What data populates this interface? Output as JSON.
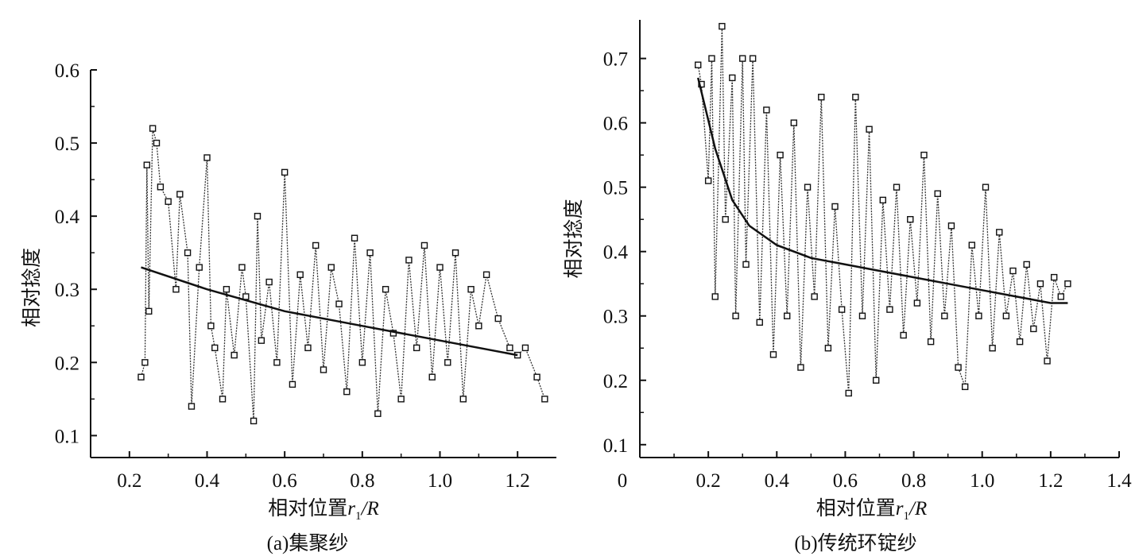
{
  "chart_data": [
    {
      "type": "line",
      "caption": "(a)集聚纱",
      "xlabel_prefix": "相对位置",
      "xlabel_var": "r",
      "xlabel_sub": "1",
      "xlabel_suffix": "/R",
      "ylabel": "相对捻度",
      "xlim": [
        0.1,
        1.3
      ],
      "ylim": [
        0.07,
        0.6
      ],
      "x_ticks": [
        0.2,
        0.4,
        0.6,
        0.8,
        1.0,
        1.2
      ],
      "x_tick_labels": [
        "0.2",
        "0.4",
        "0.6",
        "0.8",
        "1.0",
        "1.2"
      ],
      "y_ticks": [
        0.1,
        0.2,
        0.3,
        0.4,
        0.5,
        0.6
      ],
      "y_tick_labels": [
        "0.1",
        "0.2",
        "0.3",
        "0.4",
        "0.5",
        "0.6"
      ],
      "y_minor_ticks": [
        0.15,
        0.25,
        0.35,
        0.45,
        0.55
      ],
      "x_axis_labels_offset": 0,
      "series": [
        {
          "role": "measured-trace",
          "x": [
            0.23,
            0.24,
            0.245,
            0.25,
            0.26,
            0.27,
            0.28,
            0.3,
            0.32,
            0.33,
            0.35,
            0.36,
            0.38,
            0.4,
            0.41,
            0.42,
            0.44,
            0.45,
            0.47,
            0.49,
            0.5,
            0.52,
            0.53,
            0.54,
            0.56,
            0.58,
            0.6,
            0.62,
            0.64,
            0.66,
            0.68,
            0.7,
            0.72,
            0.74,
            0.76,
            0.78,
            0.8,
            0.82,
            0.84,
            0.86,
            0.88,
            0.9,
            0.92,
            0.94,
            0.96,
            0.98,
            1.0,
            1.02,
            1.04,
            1.06,
            1.08,
            1.1,
            1.12,
            1.15,
            1.18,
            1.2,
            1.22,
            1.25,
            1.27
          ],
          "y": [
            0.18,
            0.2,
            0.47,
            0.27,
            0.52,
            0.5,
            0.44,
            0.42,
            0.3,
            0.43,
            0.35,
            0.14,
            0.33,
            0.48,
            0.25,
            0.22,
            0.15,
            0.3,
            0.21,
            0.33,
            0.29,
            0.12,
            0.4,
            0.23,
            0.31,
            0.2,
            0.46,
            0.17,
            0.32,
            0.22,
            0.36,
            0.19,
            0.33,
            0.28,
            0.16,
            0.37,
            0.2,
            0.35,
            0.13,
            0.3,
            0.24,
            0.15,
            0.34,
            0.22,
            0.36,
            0.18,
            0.33,
            0.2,
            0.35,
            0.15,
            0.3,
            0.25,
            0.32,
            0.26,
            0.22,
            0.21,
            0.22,
            0.18,
            0.15
          ]
        },
        {
          "role": "trend-line",
          "x": [
            0.23,
            0.4,
            0.6,
            0.8,
            1.0,
            1.2
          ],
          "y": [
            0.33,
            0.3,
            0.27,
            0.25,
            0.23,
            0.21
          ]
        }
      ]
    },
    {
      "type": "line",
      "caption": "(b)传统环锭纱",
      "xlabel_prefix": "相对位置",
      "xlabel_var": "r",
      "xlabel_sub": "1",
      "xlabel_suffix": "/R",
      "ylabel": "相对捻度",
      "xlim": [
        0.0,
        1.4
      ],
      "ylim": [
        0.08,
        0.76
      ],
      "x_ticks": [
        0.2,
        0.4,
        0.6,
        0.8,
        1.0,
        1.2,
        1.4
      ],
      "x_tick_labels": [
        "0.2",
        "0.4",
        "0.6",
        "0.8",
        "1.0",
        "1.2",
        "1.4"
      ],
      "y_ticks": [
        0.1,
        0.2,
        0.3,
        0.4,
        0.5,
        0.6,
        0.7
      ],
      "y_tick_labels": [
        "0.1",
        "0.2",
        "0.3",
        "0.4",
        "0.5",
        "0.6",
        "0.7"
      ],
      "y_minor_ticks": [
        0.15,
        0.25,
        0.35,
        0.45,
        0.55,
        0.65
      ],
      "origin_label": "0",
      "series": [
        {
          "role": "measured-trace",
          "x": [
            0.17,
            0.18,
            0.2,
            0.21,
            0.22,
            0.24,
            0.25,
            0.27,
            0.28,
            0.3,
            0.31,
            0.33,
            0.35,
            0.37,
            0.39,
            0.41,
            0.43,
            0.45,
            0.47,
            0.49,
            0.51,
            0.53,
            0.55,
            0.57,
            0.59,
            0.61,
            0.63,
            0.65,
            0.67,
            0.69,
            0.71,
            0.73,
            0.75,
            0.77,
            0.79,
            0.81,
            0.83,
            0.85,
            0.87,
            0.89,
            0.91,
            0.93,
            0.95,
            0.97,
            0.99,
            1.01,
            1.03,
            1.05,
            1.07,
            1.09,
            1.11,
            1.13,
            1.15,
            1.17,
            1.19,
            1.21,
            1.23,
            1.25
          ],
          "y": [
            0.69,
            0.66,
            0.51,
            0.7,
            0.33,
            0.75,
            0.45,
            0.67,
            0.3,
            0.7,
            0.38,
            0.7,
            0.29,
            0.62,
            0.24,
            0.55,
            0.3,
            0.6,
            0.22,
            0.5,
            0.33,
            0.64,
            0.25,
            0.47,
            0.31,
            0.18,
            0.64,
            0.3,
            0.59,
            0.2,
            0.48,
            0.31,
            0.5,
            0.27,
            0.45,
            0.32,
            0.55,
            0.26,
            0.49,
            0.3,
            0.44,
            0.22,
            0.19,
            0.41,
            0.3,
            0.5,
            0.25,
            0.43,
            0.3,
            0.37,
            0.26,
            0.38,
            0.28,
            0.35,
            0.23,
            0.36,
            0.33,
            0.35
          ]
        },
        {
          "role": "trend-line",
          "x": [
            0.17,
            0.22,
            0.27,
            0.32,
            0.4,
            0.5,
            0.6,
            0.7,
            0.8,
            0.9,
            1.0,
            1.1,
            1.2,
            1.25
          ],
          "y": [
            0.67,
            0.56,
            0.48,
            0.44,
            0.41,
            0.39,
            0.38,
            0.37,
            0.36,
            0.35,
            0.34,
            0.33,
            0.32,
            0.32
          ]
        }
      ]
    }
  ]
}
